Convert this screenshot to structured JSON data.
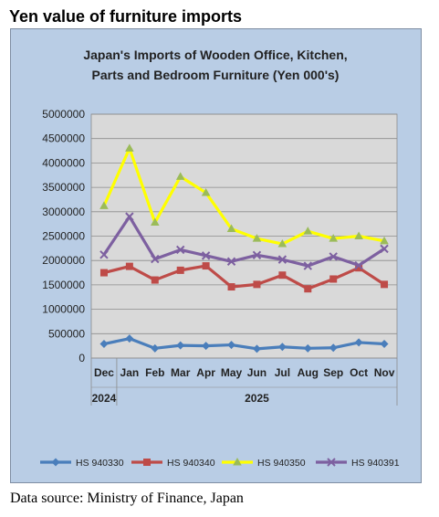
{
  "page": {
    "heading": "Yen value of furniture imports",
    "source": "Data source: Ministry of Finance, Japan"
  },
  "chart_data": {
    "type": "line",
    "title_lines": [
      "Japan's Imports of  Wooden  Office, Kitchen,",
      "Parts and Bedroom Furniture (Yen 000's)"
    ],
    "categories": [
      "Dec",
      "Jan",
      "Feb",
      "Mar",
      "Apr",
      "May",
      "Jun",
      "Jul",
      "Aug",
      "Sep",
      "Oct",
      "Nov"
    ],
    "year_groups": [
      {
        "label": "2024",
        "start": 0,
        "end": 0
      },
      {
        "label": "2025",
        "start": 1,
        "end": 11
      }
    ],
    "ylim": [
      0,
      5000000
    ],
    "yticks": [
      0,
      500000,
      1000000,
      1500000,
      2000000,
      2500000,
      3000000,
      3500000,
      4000000,
      4500000,
      5000000
    ],
    "ytick_labels": [
      "0",
      "500000",
      "1000000",
      "1500000",
      "2000000",
      "2500000",
      "3000000",
      "3500000",
      "4000000",
      "4500000",
      "5000000"
    ],
    "grid": true,
    "legend_position": "bottom",
    "series": [
      {
        "name": "HS 940330",
        "color": "#4a7ebb",
        "marker": "diamond",
        "values": [
          290000,
          400000,
          200000,
          260000,
          250000,
          270000,
          190000,
          230000,
          200000,
          210000,
          320000,
          290000
        ]
      },
      {
        "name": "HS 940340",
        "color": "#be4b48",
        "marker": "square",
        "values": [
          1750000,
          1880000,
          1600000,
          1800000,
          1890000,
          1460000,
          1510000,
          1700000,
          1420000,
          1620000,
          1850000,
          1510000
        ]
      },
      {
        "name": "HS 940350",
        "color": "#ffff00",
        "marker": "triangle",
        "marker_color": "#9bbb59",
        "values": [
          3120000,
          4300000,
          2780000,
          3720000,
          3390000,
          2650000,
          2450000,
          2340000,
          2600000,
          2450000,
          2500000,
          2400000
        ]
      },
      {
        "name": "HS 940391",
        "color": "#7d60a0",
        "marker": "x",
        "values": [
          2120000,
          2900000,
          2030000,
          2220000,
          2100000,
          1980000,
          2110000,
          2020000,
          1890000,
          2080000,
          1900000,
          2240000
        ]
      }
    ]
  }
}
